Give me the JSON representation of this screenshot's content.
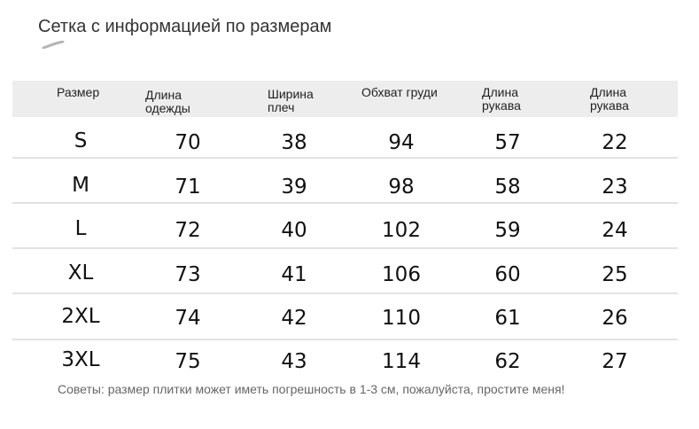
{
  "title": "Сетка с информацией по размерам",
  "table": {
    "headers": [
      "Размер",
      "Длина\nодежды",
      "Ширина\nплеч",
      "Обхват груди",
      "Длина\nрукава",
      "Длина\nрукава"
    ],
    "rows": [
      [
        "S",
        "70",
        "38",
        "94",
        "57",
        "22"
      ],
      [
        "M",
        "71",
        "39",
        "98",
        "58",
        "23"
      ],
      [
        "L",
        "72",
        "40",
        "102",
        "59",
        "24"
      ],
      [
        "XL",
        "73",
        "41",
        "106",
        "60",
        "25"
      ],
      [
        "2XL",
        "74",
        "42",
        "110",
        "61",
        "26"
      ],
      [
        "3XL",
        "75",
        "43",
        "114",
        "62",
        "27"
      ]
    ]
  },
  "note": "Советы: размер плитки может иметь погрешность в 1-3 см, пожалуйста, простите меня!",
  "colors": {
    "header_background": "#ededed",
    "divider": "#e2e2e2",
    "text": "#111111",
    "note_text": "#666666"
  }
}
